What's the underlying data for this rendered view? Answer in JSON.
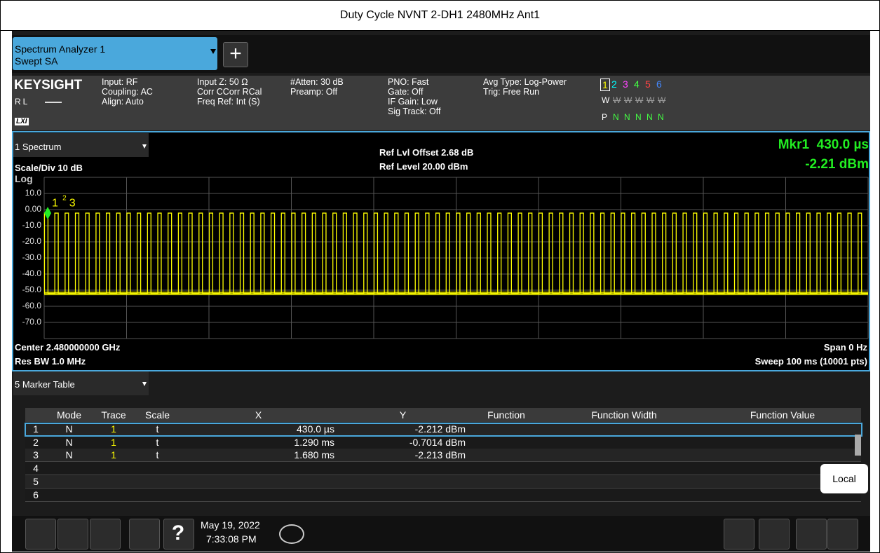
{
  "title": "Duty Cycle NVNT 2-DH1 2480MHz Ant1",
  "tab": {
    "name": "Spectrum Analyzer 1",
    "mode": "Swept SA"
  },
  "brand": "KEYSIGHT",
  "rl": "RL",
  "lxi": "LXI",
  "settings": [
    [
      "Input: RF",
      "Coupling: AC",
      "Align: Auto"
    ],
    [
      "Input Z: 50 Ω",
      "Corr CCorr RCal",
      "Freq Ref: Int (S)"
    ],
    [
      "#Atten: 30 dB",
      "Preamp: Off"
    ],
    [
      "PNO: Fast",
      "Gate: Off",
      "IF Gain: Low",
      "Sig Track: Off"
    ],
    [
      "Avg Type: Log-Power",
      "Trig: Free Run"
    ]
  ],
  "traces": {
    "numbers": [
      "1",
      "2",
      "3",
      "4",
      "5",
      "6"
    ],
    "colors": [
      "#ffff00",
      "#00ffff",
      "#ff44ff",
      "#44ff44",
      "#ff4444",
      "#4488ff"
    ],
    "types": [
      "W",
      "W",
      "W",
      "W",
      "W",
      "W"
    ],
    "detectors": [
      "P",
      "N",
      "N",
      "N",
      "N",
      "N"
    ]
  },
  "window": {
    "name": "1 Spectrum",
    "scale": "Scale/Div 10 dB",
    "log": "Log",
    "ref_offset": "Ref Lvl Offset 2.68 dB",
    "ref_level": "Ref Level 20.00 dBm",
    "marker": "Mkr1  430.0 µs",
    "marker_value": "-2.21 dBm",
    "center": "Center 2.480000000 GHz",
    "res_bw": "Res BW 1.0 MHz",
    "span": "Span 0 Hz",
    "sweep": "Sweep 100 ms (10001 pts)"
  },
  "chart_data": {
    "type": "line",
    "color": "#ffff00",
    "grid": true,
    "xlim": [
      0,
      100
    ],
    "xticks": [
      0,
      10,
      20,
      30,
      40,
      50,
      60,
      70,
      80,
      90,
      100
    ],
    "ylim": [
      -80,
      20
    ],
    "yticks": [
      {
        "value": 20,
        "label": ""
      },
      {
        "value": 10,
        "label": "10.0"
      },
      {
        "value": 0,
        "label": "0.00"
      },
      {
        "value": -10,
        "label": "-10.0"
      },
      {
        "value": -20,
        "label": "-20.0"
      },
      {
        "value": -30,
        "label": "-30.0"
      },
      {
        "value": -40,
        "label": "-40.0"
      },
      {
        "value": -50,
        "label": "-50.0"
      },
      {
        "value": -60,
        "label": "-60.0"
      },
      {
        "value": -70,
        "label": "-70.0"
      },
      {
        "value": -80,
        "label": ""
      }
    ],
    "pulse": {
      "start": 0.04,
      "period": 1.25,
      "on": 0.42,
      "high": -2.2,
      "low": -52
    },
    "markers": [
      {
        "label": "1",
        "x": 0.43,
        "y": -2.212
      },
      {
        "label": "2",
        "x": 1.29,
        "y": -0.7014
      },
      {
        "label": "3",
        "x": 1.68,
        "y": -2.213
      }
    ]
  },
  "marker_table": {
    "name": "5 Marker Table",
    "columns": [
      "Mode",
      "Trace",
      "Scale",
      "X",
      "Y",
      "Function",
      "Function Width",
      "Function Value"
    ],
    "rows": [
      [
        "1",
        "N",
        "1",
        "t",
        "430.0 µs",
        "-2.212 dBm"
      ],
      [
        "2",
        "N",
        "1",
        "t",
        "1.290 ms",
        "-0.7014 dBm"
      ],
      [
        "3",
        "N",
        "1",
        "t",
        "1.680 ms",
        "-2.213 dBm"
      ],
      [
        "4"
      ],
      [
        "5"
      ],
      [
        "6"
      ]
    ]
  },
  "taskbar": {
    "date": "May 19, 2022",
    "time": "7:33:08 PM"
  },
  "local": "Local"
}
